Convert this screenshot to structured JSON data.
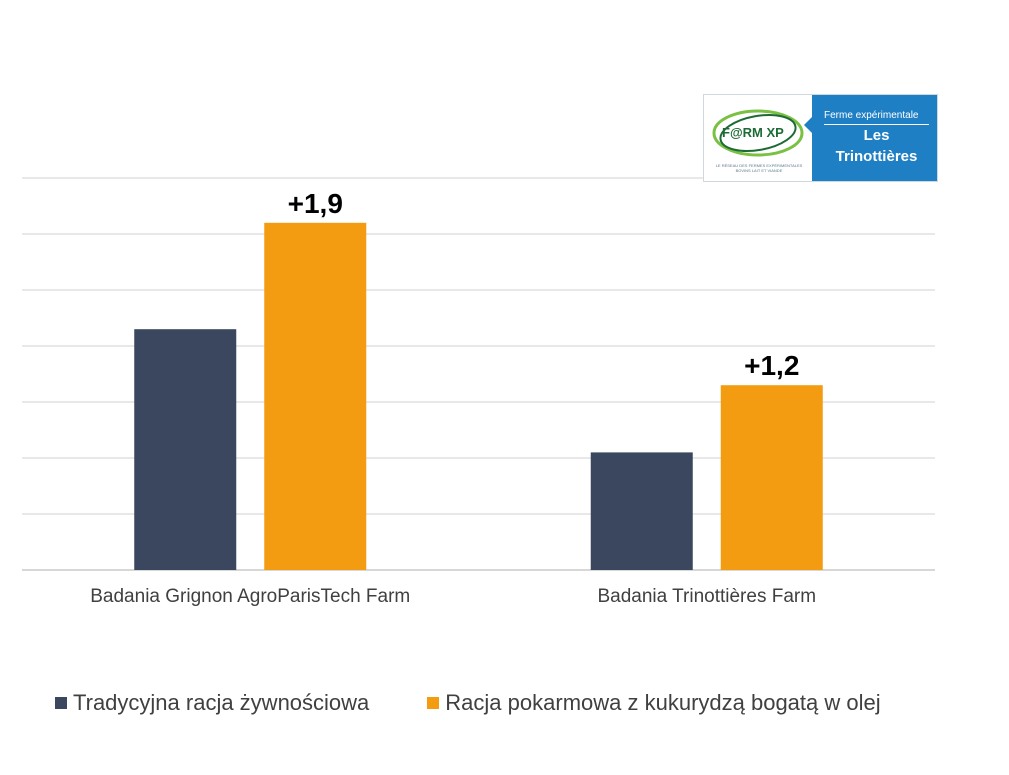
{
  "chart_data": {
    "type": "bar",
    "categories": [
      "Badania Grignon AgroParisTech Farm",
      "Badania Trinottières Farm"
    ],
    "series": [
      {
        "name": "Tradycyjna racja żywnościowa",
        "color": "#3a475f",
        "values": [
          4.3,
          2.1
        ]
      },
      {
        "name": "Racja pokarmowa z kukurydzą bogatą w olej",
        "color": "#f39c12",
        "values": [
          6.2,
          3.3
        ]
      }
    ],
    "data_labels": [
      "+1,9",
      "+1,2"
    ],
    "ylim": [
      0,
      7
    ],
    "gridlines": true,
    "grid_step": 1,
    "y_tick_labels_shown": false,
    "legend_position": "bottom"
  },
  "logo": {
    "brand_text": "F@RM XP",
    "tagline": "LE RÉSEAU DES FERMES EXPÉRIMENTALES BOVINS LAIT ET VIANDE",
    "subtitle": "Ferme expérimentale",
    "title_line1": "Les",
    "title_line2": "Trinottières",
    "colors": {
      "panel": "#1f7fc4",
      "green": "#1d6b34"
    }
  }
}
